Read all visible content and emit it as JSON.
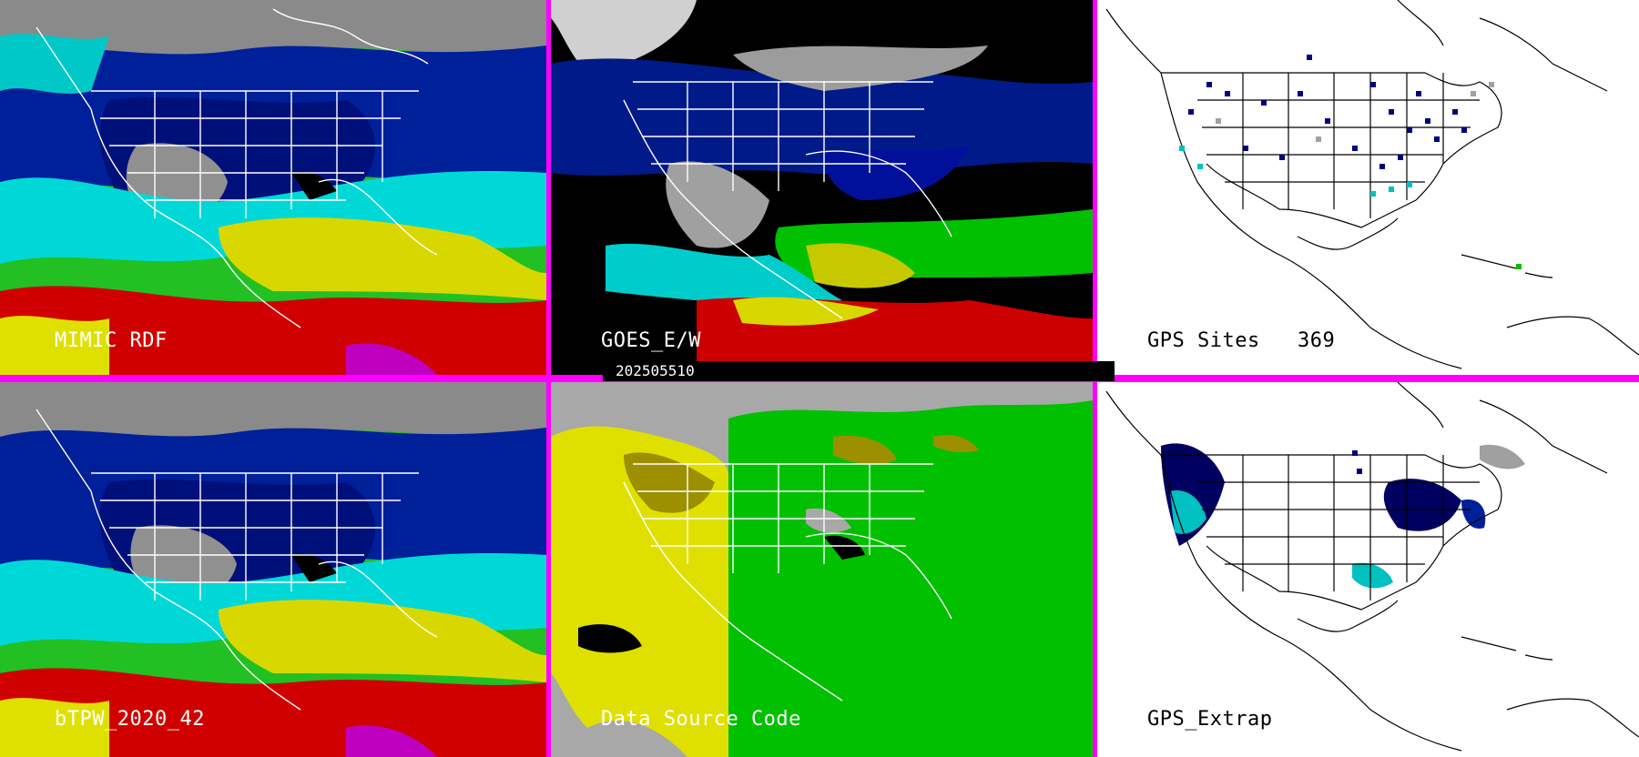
{
  "date_stamp": "202505510",
  "panels": {
    "mimic_rdf": {
      "label": "MIMIC RDF"
    },
    "goes_ew": {
      "label": "GOES_E/W"
    },
    "gps_sites": {
      "label": "GPS Sites",
      "count": "369"
    },
    "btpw": {
      "label": "bTPW_2020_42"
    },
    "data_source": {
      "label": "Data Source Code"
    },
    "gps_extrap": {
      "label": "GPS_Extrap"
    }
  },
  "colors": {
    "divider": "#ff00ff",
    "tpw_scale": [
      "#cc00cc",
      "#d40000",
      "#e8e800",
      "#00cc00",
      "#00e0e0",
      "#0000a0",
      "#000060",
      "#888888"
    ],
    "source_codes": [
      "#a8a8a8",
      "#e0e000",
      "#00c000",
      "#9c9000",
      "#000000"
    ]
  }
}
